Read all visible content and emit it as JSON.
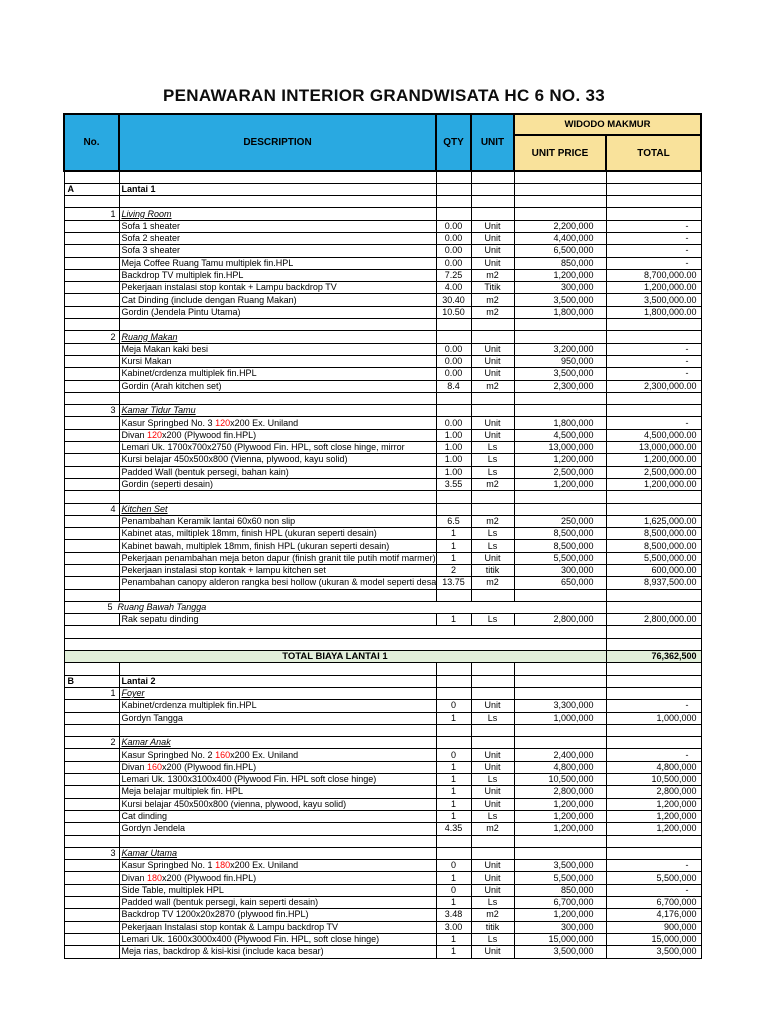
{
  "page": {
    "title": "PENAWARAN INTERIOR GRANDWISATA HC 6 NO. 33"
  },
  "table": {
    "headers": {
      "no": "No.",
      "description": "DESCRIPTION",
      "qty": "QTY",
      "unit": "UNIT",
      "vendor": "WIDODO MAKMUR",
      "unit_price": "UNIT PRICE",
      "total": "TOTAL"
    },
    "colors": {
      "header_blue": "#29a9e1",
      "header_cream": "#f9e29b",
      "total_green": "#e2efda",
      "highlight_red": "#ff0000"
    },
    "rows": [
      {
        "type": "blank"
      },
      {
        "type": "section",
        "no": "A",
        "desc": "Lantai 1"
      },
      {
        "type": "blank"
      },
      {
        "type": "group",
        "no": "1",
        "desc": "Living Room",
        "underline": true
      },
      {
        "type": "item",
        "desc": "Sofa 1 sheater",
        "qty": "0.00",
        "unit": "Unit",
        "price": "2,200,000",
        "total": "-"
      },
      {
        "type": "item",
        "desc": "Sofa 2 sheater",
        "qty": "0.00",
        "unit": "Unit",
        "price": "4,400,000",
        "total": "-"
      },
      {
        "type": "item",
        "desc": "Sofa 3 sheater",
        "qty": "0.00",
        "unit": "Unit",
        "price": "6,500,000",
        "total": "-"
      },
      {
        "type": "item",
        "desc": "Meja Coffee Ruang Tamu multiplek fin.HPL",
        "qty": "0.00",
        "unit": "Unit",
        "price": "850,000",
        "total": "-"
      },
      {
        "type": "item",
        "desc": "Backdrop TV multiplek fin.HPL",
        "qty": "7.25",
        "unit": "m2",
        "price": "1,200,000",
        "total": "8,700,000.00"
      },
      {
        "type": "item",
        "desc": "Pekerjaan instalasi stop kontak + Lampu backdrop TV",
        "qty": "4.00",
        "unit": "Titik",
        "price": "300,000",
        "total": "1,200,000.00"
      },
      {
        "type": "item",
        "desc": "Cat Dinding (include dengan Ruang Makan)",
        "qty": "30.40",
        "unit": "m2",
        "price": "3,500,000",
        "total": "3,500,000.00"
      },
      {
        "type": "item",
        "desc": "Gordin (Jendela Pintu Utama)",
        "qty": "10.50",
        "unit": "m2",
        "price": "1,800,000",
        "total": "1,800,000.00"
      },
      {
        "type": "blank"
      },
      {
        "type": "group",
        "no": "2",
        "desc": "Ruang Makan",
        "underline": true
      },
      {
        "type": "item",
        "desc": "Meja Makan kaki besi",
        "qty": "0.00",
        "unit": "Unit",
        "price": "3,200,000",
        "total": "-"
      },
      {
        "type": "item",
        "desc": "Kursi Makan",
        "qty": "0.00",
        "unit": "Unit",
        "price": "950,000",
        "total": "-"
      },
      {
        "type": "item",
        "desc": "Kabinet/crdenza multiplek fin.HPL",
        "qty": "0.00",
        "unit": "Unit",
        "price": "3,500,000",
        "total": "-"
      },
      {
        "type": "item",
        "desc": "Gordin (Arah kitchen set)",
        "qty": "8.4",
        "unit": "m2",
        "price": "2,300,000",
        "total": "2,300,000.00"
      },
      {
        "type": "blank"
      },
      {
        "type": "group",
        "no": "3",
        "desc": "Kamar Tidur Tamu",
        "underline": true
      },
      {
        "type": "item",
        "desc": [
          {
            "t": "Kasur Springbed No. 3 "
          },
          {
            "t": "120",
            "red": true
          },
          {
            "t": "x200 Ex. Uniland"
          }
        ],
        "qty": "0.00",
        "unit": "Unit",
        "price": "1,800,000",
        "total": "-"
      },
      {
        "type": "item",
        "desc": [
          {
            "t": "Divan "
          },
          {
            "t": "120",
            "red": true
          },
          {
            "t": "x200 (Plywood fin.HPL)"
          }
        ],
        "qty": "1.00",
        "unit": "Unit",
        "price": "4,500,000",
        "total": "4,500,000.00"
      },
      {
        "type": "item",
        "desc": "Lemari Uk. 1700x700x2750 (Plywood Fin. HPL, soft close hinge, mirror",
        "qty": "1.00",
        "unit": "Ls",
        "price": "13,000,000",
        "total": "13,000,000.00"
      },
      {
        "type": "item",
        "desc": "Kursi belajar 450x500x800 (Vienna, plywood, kayu solid)",
        "qty": "1.00",
        "unit": "Ls",
        "price": "1,200,000",
        "total": "1,200,000.00"
      },
      {
        "type": "item",
        "desc": "Padded Wall (bentuk persegi, bahan kain)",
        "qty": "1.00",
        "unit": "Ls",
        "price": "2,500,000",
        "total": "2,500,000.00"
      },
      {
        "type": "item",
        "desc": "Gordin (seperti desain)",
        "qty": "3.55",
        "unit": "m2",
        "price": "1,200,000",
        "total": "1,200,000.00"
      },
      {
        "type": "blank"
      },
      {
        "type": "group",
        "no": "4",
        "desc": "Kitchen Set",
        "underline": true
      },
      {
        "type": "item",
        "desc": "Penambahan Keramik lantai 60x60 non slip",
        "qty": "6.5",
        "unit": "m2",
        "price": "250,000",
        "total": "1,625,000.00"
      },
      {
        "type": "item",
        "desc": "Kabinet atas, miltiplek 18mm, finish HPL (ukuran seperti desain)",
        "qty": "1",
        "unit": "Ls",
        "price": "8,500,000",
        "total": "8,500,000.00"
      },
      {
        "type": "item",
        "desc": "Kabinet bawah, multiplek 18mm, finish HPL (ukuran seperti desain)",
        "qty": "1",
        "unit": "Ls",
        "price": "8,500,000",
        "total": "8,500,000.00"
      },
      {
        "type": "item",
        "desc": "Pekerjaan penambahan meja beton dapur (finish granit tile putih motif marmer)",
        "qty": "1",
        "unit": "Unit",
        "price": "5,500,000",
        "total": "5,500,000.00"
      },
      {
        "type": "item",
        "desc": "Pekerjaan instalasi stop kontak + lampu kitchen set",
        "qty": "2",
        "unit": "titik",
        "price": "300,000",
        "total": "600,000.00"
      },
      {
        "type": "item",
        "desc": "Penambahan canopy alderon rangka besi hollow (ukuran & model seperti desa",
        "qty": "13.75",
        "unit": "m2",
        "price": "650,000",
        "total": "8,937,500.00"
      },
      {
        "type": "blank"
      },
      {
        "type": "group",
        "no": "5",
        "desc": "Ruang Bawah Tangga",
        "underline": false,
        "plain": true
      },
      {
        "type": "item",
        "desc": "Rak sepatu dinding",
        "qty": "1",
        "unit": "Ls",
        "price": "2,800,000",
        "total": "2,800,000.00"
      },
      {
        "type": "blank2"
      },
      {
        "type": "blank2"
      },
      {
        "type": "grand_total",
        "label": "TOTAL BIAYA LANTAI 1",
        "total": "76,362,500"
      },
      {
        "type": "blank"
      },
      {
        "type": "section",
        "no": "B",
        "desc": "Lantai 2"
      },
      {
        "type": "group",
        "no": "1",
        "desc": "Foyer",
        "underline": true
      },
      {
        "type": "item",
        "desc": "Kabinet/crdenza multiplek fin.HPL",
        "qty": "0",
        "unit": "Unit",
        "price": "3,300,000",
        "total": "-"
      },
      {
        "type": "item",
        "desc": "Gordyn Tangga",
        "qty": "1",
        "unit": "Ls",
        "price": "1,000,000",
        "total": "1,000,000"
      },
      {
        "type": "blank"
      },
      {
        "type": "group",
        "no": "2",
        "desc": "Kamar Anak",
        "underline": true
      },
      {
        "type": "item",
        "desc": [
          {
            "t": "Kasur Springbed No. 2 "
          },
          {
            "t": "160",
            "red": true
          },
          {
            "t": "x200 Ex. Uniland"
          }
        ],
        "qty": "0",
        "unit": "Unit",
        "price": "2,400,000",
        "total": "-"
      },
      {
        "type": "item",
        "desc": [
          {
            "t": "Divan "
          },
          {
            "t": "160",
            "red": true
          },
          {
            "t": "x200 (Plywood fin.HPL)"
          }
        ],
        "qty": "1",
        "unit": "Unit",
        "price": "4,800,000",
        "total": "4,800,000"
      },
      {
        "type": "item",
        "desc": "Lemari Uk. 1300x3100x400 (Plywood Fin. HPL soft close hinge)",
        "qty": "1",
        "unit": "Ls",
        "price": "10,500,000",
        "total": "10,500,000"
      },
      {
        "type": "item",
        "desc": "Meja belajar multiplek fin. HPL",
        "qty": "1",
        "unit": "Unit",
        "price": "2,800,000",
        "total": "2,800,000"
      },
      {
        "type": "item",
        "desc": "Kursi belajar 450x500x800 (vienna, plywood, kayu solid)",
        "qty": "1",
        "unit": "Unit",
        "price": "1,200,000",
        "total": "1,200,000"
      },
      {
        "type": "item",
        "desc": "Cat dinding",
        "qty": "1",
        "unit": "Ls",
        "price": "1,200,000",
        "total": "1,200,000"
      },
      {
        "type": "item",
        "desc": "Gordyn Jendela",
        "qty": "4.35",
        "unit": "m2",
        "price": "1,200,000",
        "total": "1,200,000"
      },
      {
        "type": "blank"
      },
      {
        "type": "group",
        "no": "3",
        "desc": "Kamar Utama",
        "underline": true
      },
      {
        "type": "item",
        "desc": [
          {
            "t": "Kasur Springbed No. 1 "
          },
          {
            "t": "180",
            "red": true
          },
          {
            "t": "x200 Ex. Uniland"
          }
        ],
        "qty": "0",
        "unit": "Unit",
        "price": "3,500,000",
        "total": "-"
      },
      {
        "type": "item",
        "desc": [
          {
            "t": "Divan "
          },
          {
            "t": "180",
            "red": true
          },
          {
            "t": "x200 (Plywood fin.HPL)"
          }
        ],
        "qty": "1",
        "unit": "Unit",
        "price": "5,500,000",
        "total": "5,500,000"
      },
      {
        "type": "item",
        "desc": "Side Table, multiplek HPL",
        "qty": "0",
        "unit": "Unit",
        "price": "850,000",
        "total": "-"
      },
      {
        "type": "item",
        "desc": "Padded wall (bentuk persegi, kain seperti desain)",
        "qty": "1",
        "unit": "Ls",
        "price": "6,700,000",
        "total": "6,700,000"
      },
      {
        "type": "item",
        "desc": "Backdrop TV 1200x20x2870 (plywood fin.HPL)",
        "qty": "3.48",
        "unit": "m2",
        "price": "1,200,000",
        "total": "4,176,000"
      },
      {
        "type": "item",
        "desc": "Pekerjaan Instalasi stop kontak & Lampu backdrop TV",
        "qty": "3.00",
        "unit": "titik",
        "price": "300,000",
        "total": "900,000"
      },
      {
        "type": "item",
        "desc": "Lemari Uk. 1600x3000x400 (Plywood Fin. HPL, soft close hinge)",
        "qty": "1",
        "unit": "Ls",
        "price": "15,000,000",
        "total": "15,000,000"
      },
      {
        "type": "item",
        "desc": "Meja rias, backdrop & kisi-kisi (include kaca besar)",
        "qty": "1",
        "unit": "Unit",
        "price": "3,500,000",
        "total": "3,500,000"
      }
    ]
  }
}
